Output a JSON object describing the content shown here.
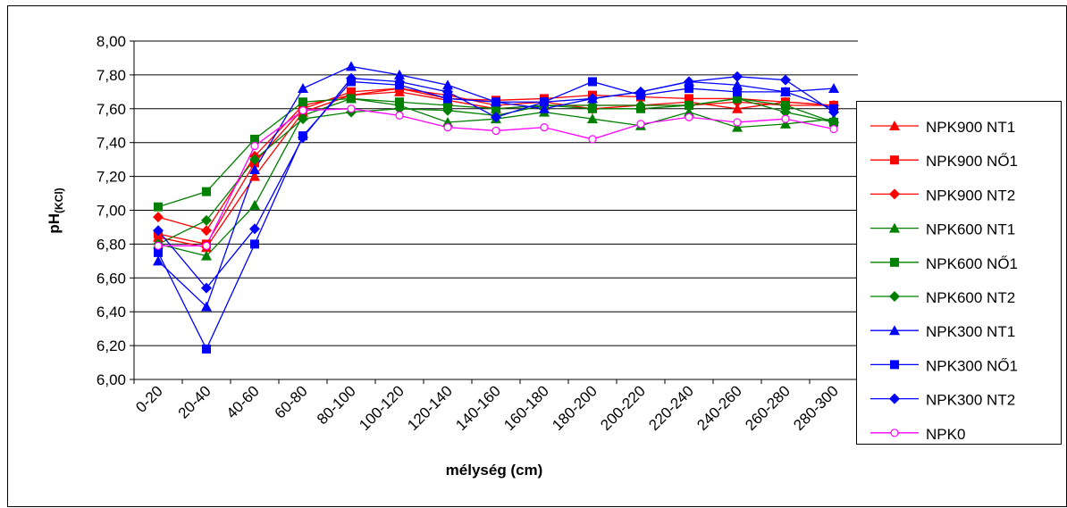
{
  "chart_data": {
    "type": "line",
    "xlabel": "mélység (cm)",
    "ylabel": "pH",
    "ylabel_sub": "(KCl)",
    "categories": [
      "0-20",
      "20-40",
      "40-60",
      "60-80",
      "80-100",
      "100-120",
      "120-140",
      "140-160",
      "160-180",
      "180-200",
      "200-220",
      "220-240",
      "240-260",
      "260-280",
      "280-300"
    ],
    "ylim": [
      6.0,
      8.0
    ],
    "yticks": [
      {
        "value": 6.0,
        "label": "6,00"
      },
      {
        "value": 6.2,
        "label": "6,20"
      },
      {
        "value": 6.4,
        "label": "6,40"
      },
      {
        "value": 6.6,
        "label": "6,60"
      },
      {
        "value": 6.8,
        "label": "6,80"
      },
      {
        "value": 7.0,
        "label": "7,00"
      },
      {
        "value": 7.2,
        "label": "7,20"
      },
      {
        "value": 7.4,
        "label": "7,40"
      },
      {
        "value": 7.6,
        "label": "7,60"
      },
      {
        "value": 7.8,
        "label": "7,80"
      },
      {
        "value": 8.0,
        "label": "8,00"
      }
    ],
    "grid": true,
    "legend": "right",
    "series": [
      {
        "name": "NPK900 NT1",
        "color": "#ff0000",
        "marker": "triangle",
        "values": [
          6.84,
          6.78,
          7.2,
          7.58,
          7.68,
          7.7,
          7.65,
          7.6,
          7.62,
          7.62,
          7.62,
          7.64,
          7.6,
          7.64,
          7.62
        ]
      },
      {
        "name": "NPK900 NŐ1",
        "color": "#ff0000",
        "marker": "square",
        "values": [
          6.86,
          6.8,
          7.28,
          7.6,
          7.7,
          7.72,
          7.66,
          7.65,
          7.66,
          7.68,
          7.67,
          7.66,
          7.66,
          7.64,
          7.62
        ]
      },
      {
        "name": "NPK900 NT2",
        "color": "#ff0000",
        "marker": "diamond",
        "values": [
          6.96,
          6.88,
          7.32,
          7.62,
          7.68,
          7.72,
          7.68,
          7.62,
          7.64,
          7.6,
          7.62,
          7.62,
          7.64,
          7.62,
          7.62
        ]
      },
      {
        "name": "NPK600 NT1",
        "color": "#008000",
        "marker": "triangle",
        "values": [
          6.8,
          6.73,
          7.03,
          7.56,
          7.66,
          7.62,
          7.52,
          7.54,
          7.58,
          7.54,
          7.5,
          7.58,
          7.49,
          7.51,
          7.54
        ]
      },
      {
        "name": "NPK600 NŐ1",
        "color": "#008000",
        "marker": "square",
        "values": [
          7.02,
          7.11,
          7.42,
          7.64,
          7.66,
          7.64,
          7.62,
          7.6,
          7.62,
          7.6,
          7.6,
          7.62,
          7.66,
          7.62,
          7.52
        ]
      },
      {
        "name": "NPK600 NT2",
        "color": "#008000",
        "marker": "diamond",
        "values": [
          6.8,
          6.94,
          7.3,
          7.54,
          7.58,
          7.6,
          7.59,
          7.56,
          7.62,
          7.62,
          7.62,
          7.62,
          7.66,
          7.58,
          7.52
        ]
      },
      {
        "name": "NPK300 NT1",
        "color": "#0000ff",
        "marker": "triangle",
        "values": [
          6.7,
          6.43,
          7.24,
          7.72,
          7.85,
          7.8,
          7.74,
          7.64,
          7.6,
          7.66,
          7.7,
          7.76,
          7.74,
          7.7,
          7.72
        ]
      },
      {
        "name": "NPK300 NŐ1",
        "color": "#0000ff",
        "marker": "square",
        "values": [
          6.75,
          6.18,
          6.8,
          7.44,
          7.76,
          7.74,
          7.66,
          7.64,
          7.64,
          7.76,
          7.68,
          7.72,
          7.7,
          7.7,
          7.6
        ]
      },
      {
        "name": "NPK300 NT2",
        "color": "#0000ff",
        "marker": "diamond",
        "values": [
          6.88,
          6.54,
          6.89,
          7.43,
          7.78,
          7.76,
          7.7,
          7.55,
          7.64,
          7.66,
          7.7,
          7.76,
          7.79,
          7.77,
          7.58
        ]
      },
      {
        "name": "NPK0",
        "color": "#ff00ff",
        "marker": "circle-open",
        "values": [
          6.79,
          6.79,
          7.38,
          7.59,
          7.6,
          7.56,
          7.49,
          7.47,
          7.49,
          7.42,
          7.51,
          7.55,
          7.52,
          7.54,
          7.48
        ]
      }
    ]
  }
}
